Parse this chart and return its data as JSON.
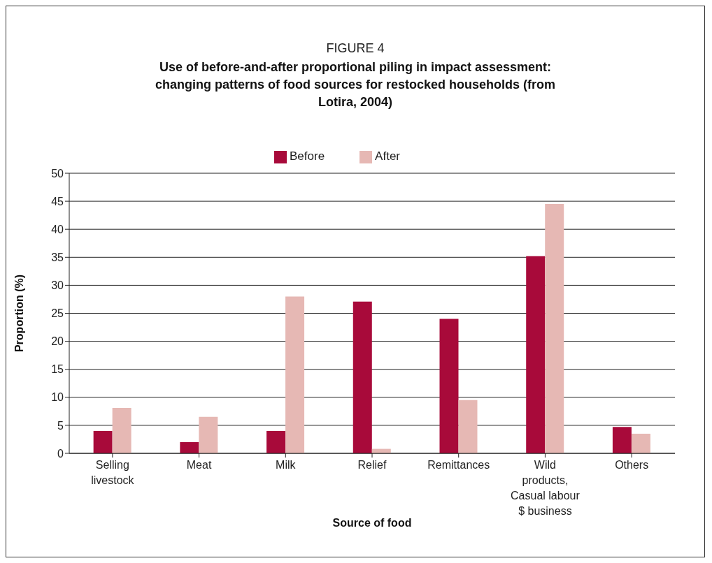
{
  "chart_data": {
    "type": "bar",
    "title": "FIGURE 4",
    "subtitle": "Use of before-and-after proportional piling in impact assessment: changing patterns of food sources for restocked households (from Lotira, 2004)",
    "xlabel": "Source of food",
    "ylabel": "Proportion (%)",
    "categories": [
      "Selling livestock",
      "Meat",
      "Milk",
      "Relief",
      "Remittances",
      "Wild products, Casual labour $ business",
      "Others"
    ],
    "series": [
      {
        "name": "Before",
        "color": "#a80a3a",
        "values": [
          4,
          2,
          4,
          27.1,
          24,
          35.2,
          4.7
        ]
      },
      {
        "name": "After",
        "color": "#e6b8b4",
        "values": [
          8.1,
          6.5,
          28,
          0.8,
          9.5,
          44.5,
          3.5
        ]
      }
    ],
    "ylim": [
      0,
      50
    ],
    "yticks": [
      0,
      5,
      10,
      15,
      20,
      25,
      30,
      35,
      40,
      45,
      50
    ],
    "grid": "y",
    "legend": "top"
  }
}
